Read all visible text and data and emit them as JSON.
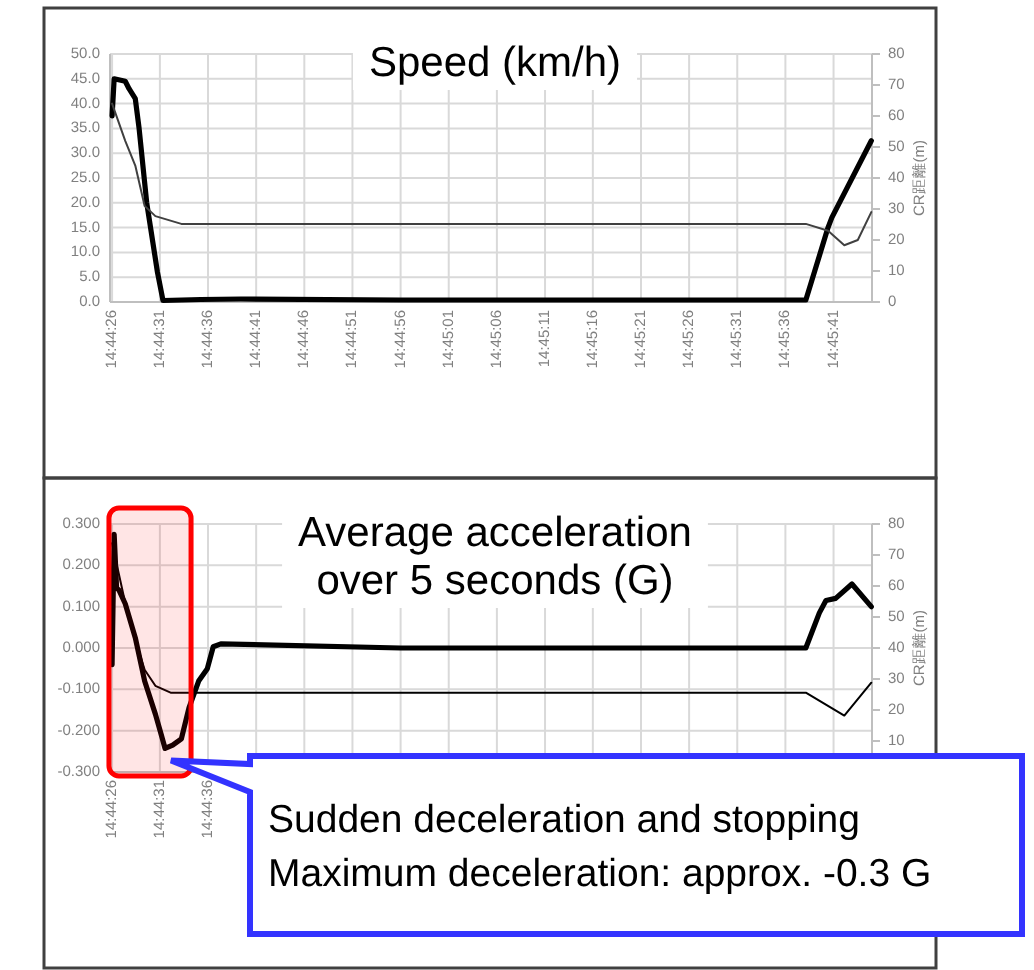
{
  "chart_data": [
    {
      "type": "line",
      "title": "Speed (km/h)",
      "y2label": "CR距離(m)",
      "grid": true,
      "xlim": [
        14.7405,
        14.7625
      ],
      "xticks": [
        {
          "value": 14.74056,
          "label": "14:44:26"
        },
        {
          "value": 14.74194,
          "label": "14:44:31"
        },
        {
          "value": 14.74333,
          "label": "14:44:36"
        },
        {
          "value": 14.74472,
          "label": "14:44:41"
        },
        {
          "value": 14.74611,
          "label": "14:44:46"
        },
        {
          "value": 14.7475,
          "label": "14:44:51"
        },
        {
          "value": 14.74889,
          "label": "14:44:56"
        },
        {
          "value": 14.75028,
          "label": "14:45:01"
        },
        {
          "value": 14.75167,
          "label": "14:45:06"
        },
        {
          "value": 14.75306,
          "label": "14:45:11"
        },
        {
          "value": 14.75444,
          "label": "14:45:16"
        },
        {
          "value": 14.75583,
          "label": "14:45:21"
        },
        {
          "value": 14.75722,
          "label": "14:45:26"
        },
        {
          "value": 14.75861,
          "label": "14:45:31"
        },
        {
          "value": 14.76,
          "label": "14:45:36"
        },
        {
          "value": 14.76139,
          "label": "14:45:41"
        }
      ],
      "ylim": [
        0,
        50
      ],
      "yticks": [
        {
          "value": 0,
          "label": "0.0"
        },
        {
          "value": 5,
          "label": "5.0"
        },
        {
          "value": 10,
          "label": "10.0"
        },
        {
          "value": 15,
          "label": "15.0"
        },
        {
          "value": 20,
          "label": "20.0"
        },
        {
          "value": 25,
          "label": "25.0"
        },
        {
          "value": 30,
          "label": "30.0"
        },
        {
          "value": 35,
          "label": "35.0"
        },
        {
          "value": 40,
          "label": "40.0"
        },
        {
          "value": 45,
          "label": "45.0"
        },
        {
          "value": 50,
          "label": "50.0"
        }
      ],
      "y2lim": [
        0,
        80
      ],
      "y2ticks": [
        0,
        10,
        20,
        30,
        40,
        50,
        60,
        70,
        80
      ],
      "series": [
        {
          "color": "#000000",
          "x": [
            14.74056,
            14.74062,
            14.74094,
            14.74105,
            14.74123,
            14.74134,
            14.74156,
            14.74187,
            14.74203,
            14.74312,
            14.74428,
            14.74889,
            14.75464,
            14.76059,
            14.76123,
            14.76134,
            14.76248
          ],
          "values": [
            37.5,
            45,
            44.5,
            43,
            41,
            35,
            20,
            6,
            0.3,
            0.5,
            0.6,
            0.4,
            0.4,
            0.4,
            15,
            17,
            32.5
          ]
        },
        {
          "color": "#404040",
          "axis": "y2",
          "x": [
            14.74056,
            14.74094,
            14.74123,
            14.7415,
            14.74181,
            14.74256,
            14.76059,
            14.76123,
            14.7617,
            14.76209,
            14.76248
          ],
          "values": [
            64,
            52,
            44,
            31,
            27.7,
            25.2,
            25.2,
            23,
            18.3,
            20,
            29
          ]
        }
      ]
    },
    {
      "type": "line",
      "title": "Average acceleration over 5 seconds (G)",
      "y2label": "CR距離(m)",
      "grid": true,
      "xlim": [
        14.7405,
        14.7625
      ],
      "xticks": [
        {
          "value": 14.74056,
          "label": "14:44:26"
        },
        {
          "value": 14.74194,
          "label": "14:44:31"
        },
        {
          "value": 14.74333,
          "label": "14:44:36"
        },
        {
          "value": 14.74472,
          "label": null
        },
        {
          "value": 14.74611,
          "label": null
        },
        {
          "value": 14.7475,
          "label": null
        },
        {
          "value": 14.74889,
          "label": null
        },
        {
          "value": 14.75028,
          "label": null
        },
        {
          "value": 14.75167,
          "label": null
        },
        {
          "value": 14.75306,
          "label": null
        },
        {
          "value": 14.75444,
          "label": null
        },
        {
          "value": 14.75583,
          "label": null
        },
        {
          "value": 14.75722,
          "label": null
        },
        {
          "value": 14.75861,
          "label": null
        },
        {
          "value": 14.76,
          "label": null
        },
        {
          "value": 14.76139,
          "label": null
        }
      ],
      "ylim": [
        -0.3,
        0.3
      ],
      "yticks": [
        {
          "value": -0.3,
          "label": "-0.300"
        },
        {
          "value": -0.2,
          "label": "-0.200"
        },
        {
          "value": -0.1,
          "label": "-0.100"
        },
        {
          "value": 0,
          "label": "0.000"
        },
        {
          "value": 0.1,
          "label": "0.100"
        },
        {
          "value": 0.2,
          "label": "0.200"
        },
        {
          "value": 0.3,
          "label": "0.300"
        }
      ],
      "y2lim": [
        0,
        80
      ],
      "y2ticks": [
        {
          "value": 0,
          "label": null
        },
        10,
        20,
        30,
        40,
        50,
        60,
        70,
        80
      ],
      "series": [
        {
          "color": "#000000",
          "x": [
            14.74056,
            14.74062,
            14.74069,
            14.74076,
            14.74094,
            14.74123,
            14.7415,
            14.74181,
            14.74198,
            14.74209,
            14.74231,
            14.74256,
            14.74278,
            14.74306,
            14.74331,
            14.74348,
            14.7437,
            14.74889,
            14.75464,
            14.76059,
            14.76098,
            14.76117,
            14.76145,
            14.76192,
            14.76248
          ],
          "values": [
            -0.04,
            0.275,
            0.145,
            0.14,
            0.107,
            0.025,
            -0.08,
            -0.16,
            -0.21,
            -0.243,
            -0.235,
            -0.22,
            -0.145,
            -0.08,
            -0.05,
            0.003,
            0.01,
            0,
            0,
            0,
            0.085,
            0.115,
            0.12,
            0.155,
            0.1
          ]
        },
        {
          "color": "#000000",
          "axis": "y2",
          "x": [
            14.74056,
            14.74094,
            14.74123,
            14.7415,
            14.74181,
            14.74225,
            14.76059,
            14.7617,
            14.76248
          ],
          "values": [
            73.8,
            54.5,
            42.8,
            33,
            27.8,
            25.6,
            25.6,
            18.2,
            28.8
          ]
        }
      ],
      "bands": [
        {
          "axis": "x",
          "from": 14.74047,
          "to": 14.74284,
          "color": "#ff0000"
        }
      ],
      "annotations": [
        {
          "text": "Sudden deceleration and stopping\nMaximum deceleration: approx. -0.3 G",
          "x": 14.74209,
          "y": -0.243
        }
      ]
    }
  ]
}
